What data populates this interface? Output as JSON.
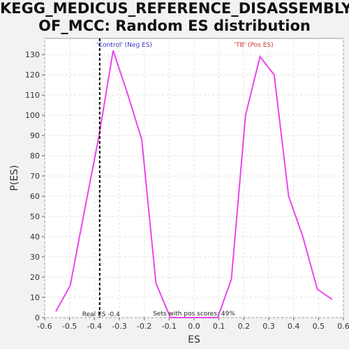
{
  "chart_data": {
    "type": "line",
    "title_line1": "KEGG_MEDICUS_REFERENCE_DISASSEMBLY_",
    "title_line2": "OF_MCC: Random ES distribution",
    "xlabel": "ES",
    "ylabel": "P(ES)",
    "xlim": [
      -0.6,
      0.6
    ],
    "ylim": [
      0,
      138
    ],
    "xticks": [
      -0.6,
      -0.5,
      -0.4,
      -0.3,
      -0.2,
      -0.1,
      0.0,
      0.1,
      0.2,
      0.3,
      0.4,
      0.5,
      0.6
    ],
    "xtick_labels": [
      "-0.6",
      "-0.5",
      "-0.4",
      "-0.3",
      "-0.2",
      "-0.1",
      "0.0",
      "0.1",
      "0.2",
      "0.3",
      "0.4",
      "0.5",
      "0.6"
    ],
    "yticks": [
      0,
      10,
      20,
      30,
      40,
      50,
      60,
      70,
      80,
      90,
      100,
      110,
      120,
      130
    ],
    "ytick_labels": [
      "0",
      "10",
      "20",
      "30",
      "40",
      "50",
      "60",
      "70",
      "80",
      "90",
      "100",
      "110",
      "120",
      "130"
    ],
    "grid": true,
    "line_color": "#ee44ee",
    "series": [
      {
        "x": [
          -0.555,
          -0.497,
          -0.44,
          -0.383,
          -0.325,
          -0.268,
          -0.21,
          -0.153,
          -0.095,
          -0.038,
          0.02,
          0.077,
          0.095,
          0.15,
          0.207,
          0.265,
          0.322,
          0.38,
          0.437,
          0.495,
          0.555
        ],
        "y": [
          3,
          16,
          53,
          89,
          132,
          111,
          88,
          17,
          0,
          0,
          0,
          0,
          0,
          19,
          100,
          129,
          120,
          60,
          40,
          14,
          9
        ]
      }
    ],
    "real_es": -0.379,
    "real_es_label": "Real ES -0.4",
    "neg_label": "'Control' (Neg ES)",
    "neg_color": "#3333cc",
    "pos_label": "'TB' (Pos ES)",
    "pos_color": "#cc3333",
    "pos_scores_label": "Sets with pos scores: 49%"
  }
}
